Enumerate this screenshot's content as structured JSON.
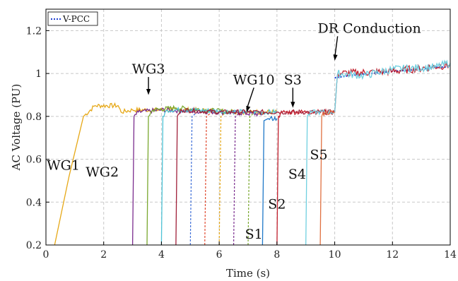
{
  "chart_data": {
    "type": "line",
    "xlabel": "Time (s)",
    "ylabel": "AC Voltage (PU)",
    "xlim": [
      0,
      14
    ],
    "ylim": [
      0.2,
      1.3
    ],
    "x_ticks": [
      "0",
      "2",
      "4",
      "6",
      "8",
      "10",
      "12",
      "14"
    ],
    "y_ticks": [
      "0.2",
      "0.4",
      "0.6",
      "0.8",
      "1",
      "1.2"
    ],
    "grid": true,
    "legend": {
      "position": "top-left",
      "entries": [
        "V-PCC"
      ]
    },
    "series": [
      {
        "name": "V-PCC",
        "color": "#1f3fd1",
        "style": "dotted",
        "x": [
          10.0,
          10.5,
          12.0,
          13.0,
          13.5,
          14.0
        ],
        "y": [
          0.98,
          0.99,
          1.01,
          1.02,
          1.03,
          1.03
        ]
      },
      {
        "color": "#e6a817",
        "x": [
          0.3,
          0.8,
          1.3,
          1.7,
          2.5,
          2.6,
          3.0,
          5.0,
          7.0,
          8.0
        ],
        "y": [
          0.2,
          0.52,
          0.8,
          0.85,
          0.85,
          0.82,
          0.83,
          0.83,
          0.82,
          0.82
        ]
      },
      {
        "color": "#7b2d8e",
        "x": [
          3.0,
          3.05,
          3.2,
          4.0,
          6.0,
          7.5
        ],
        "y": [
          0.2,
          0.8,
          0.82,
          0.83,
          0.82,
          0.81
        ]
      },
      {
        "color": "#7aa82f",
        "x": [
          3.5,
          3.55,
          3.7,
          4.5,
          6.5
        ],
        "y": [
          0.2,
          0.8,
          0.83,
          0.84,
          0.82
        ]
      },
      {
        "color": "#4ec3d6",
        "x": [
          4.0,
          4.05,
          4.2,
          5.0,
          7.0,
          8.0
        ],
        "y": [
          0.2,
          0.8,
          0.83,
          0.83,
          0.82,
          0.82
        ]
      },
      {
        "color": "#a0203a",
        "x": [
          4.5,
          4.55,
          4.7,
          6.0,
          8.0,
          9.0,
          10.0
        ],
        "y": [
          0.2,
          0.8,
          0.83,
          0.82,
          0.82,
          0.82,
          0.82
        ]
      },
      {
        "color": "#1f78c8",
        "x": [
          7.5,
          7.55,
          7.7,
          8.0
        ],
        "y": [
          0.2,
          0.78,
          0.79,
          0.79
        ]
      },
      {
        "color": "#c2202e",
        "x": [
          8.0,
          8.05,
          8.2,
          9.0,
          10.0,
          10.1,
          12.0,
          14.0
        ],
        "y": [
          0.2,
          0.8,
          0.82,
          0.82,
          0.82,
          1.0,
          1.01,
          1.04
        ]
      },
      {
        "color": "#70d0e0",
        "x": [
          9.0,
          9.05,
          9.2,
          10.0,
          10.1,
          11.0,
          12.0,
          13.5,
          14.0
        ],
        "y": [
          0.2,
          0.8,
          0.82,
          0.82,
          1.0,
          0.99,
          1.02,
          1.03,
          1.05
        ]
      },
      {
        "color": "#e07040",
        "x": [
          9.5,
          9.55,
          9.7,
          10.0
        ],
        "y": [
          0.2,
          0.8,
          0.82,
          0.82
        ]
      }
    ],
    "dashed_traces": [
      {
        "x": 5.0,
        "color": "#3f6fd8"
      },
      {
        "x": 5.5,
        "color": "#e04a30"
      },
      {
        "x": 6.0,
        "color": "#e6a817"
      },
      {
        "x": 6.5,
        "color": "#7b2d8e"
      },
      {
        "x": 7.0,
        "color": "#7aa82f"
      }
    ],
    "annotations": [
      {
        "text": "WG1",
        "x": 0.6,
        "y": 0.55
      },
      {
        "text": "WG2",
        "x": 1.95,
        "y": 0.52
      },
      {
        "text": "WG3",
        "x": 3.55,
        "y": 1.0,
        "arrow_to": [
          3.55,
          0.9
        ]
      },
      {
        "text": "WG10",
        "x": 7.2,
        "y": 0.95,
        "arrow_to": [
          6.95,
          0.82
        ]
      },
      {
        "text": "S3",
        "x": 8.55,
        "y": 0.95,
        "arrow_to": [
          8.55,
          0.84
        ]
      },
      {
        "text": "S1",
        "x": 7.2,
        "y": 0.23
      },
      {
        "text": "S2",
        "x": 8.0,
        "y": 0.37
      },
      {
        "text": "S4",
        "x": 8.7,
        "y": 0.51
      },
      {
        "text": "S5",
        "x": 9.45,
        "y": 0.6
      },
      {
        "text": "DR Conduction",
        "x": 11.2,
        "y": 1.19,
        "arrow_to": [
          10.0,
          1.06
        ]
      }
    ]
  }
}
